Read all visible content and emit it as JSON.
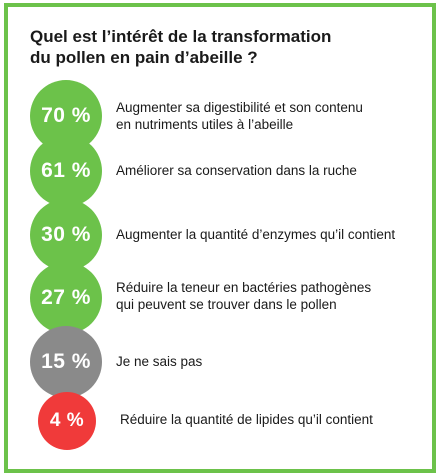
{
  "question": "Quel est l’intérêt de la transformation\ndu pollen en pain d’abeille ?",
  "colors": {
    "frame": "#6cc24a",
    "green": "#6cc24a",
    "grey": "#8a8a8a",
    "red": "#f03a3a"
  },
  "answers": [
    {
      "percent": "70 %",
      "label": "Augmenter sa digestibilité et son contenu\nen nutriments utiles à l’abeille",
      "color": "green"
    },
    {
      "percent": "61 %",
      "label": "Améliorer sa conservation dans la ruche",
      "color": "green"
    },
    {
      "percent": "30 %",
      "label": "Augmenter la quantité d’enzymes qu’il contient",
      "color": "green"
    },
    {
      "percent": "27 %",
      "label": "Réduire la teneur en bactéries pathogènes\nqui peuvent se trouver dans le pollen",
      "color": "green"
    },
    {
      "percent": "15 %",
      "label": "Je ne sais pas",
      "color": "grey"
    },
    {
      "percent": "4 %",
      "label": "Réduire la quantité de lipides qu’il contient",
      "color": "red"
    }
  ]
}
